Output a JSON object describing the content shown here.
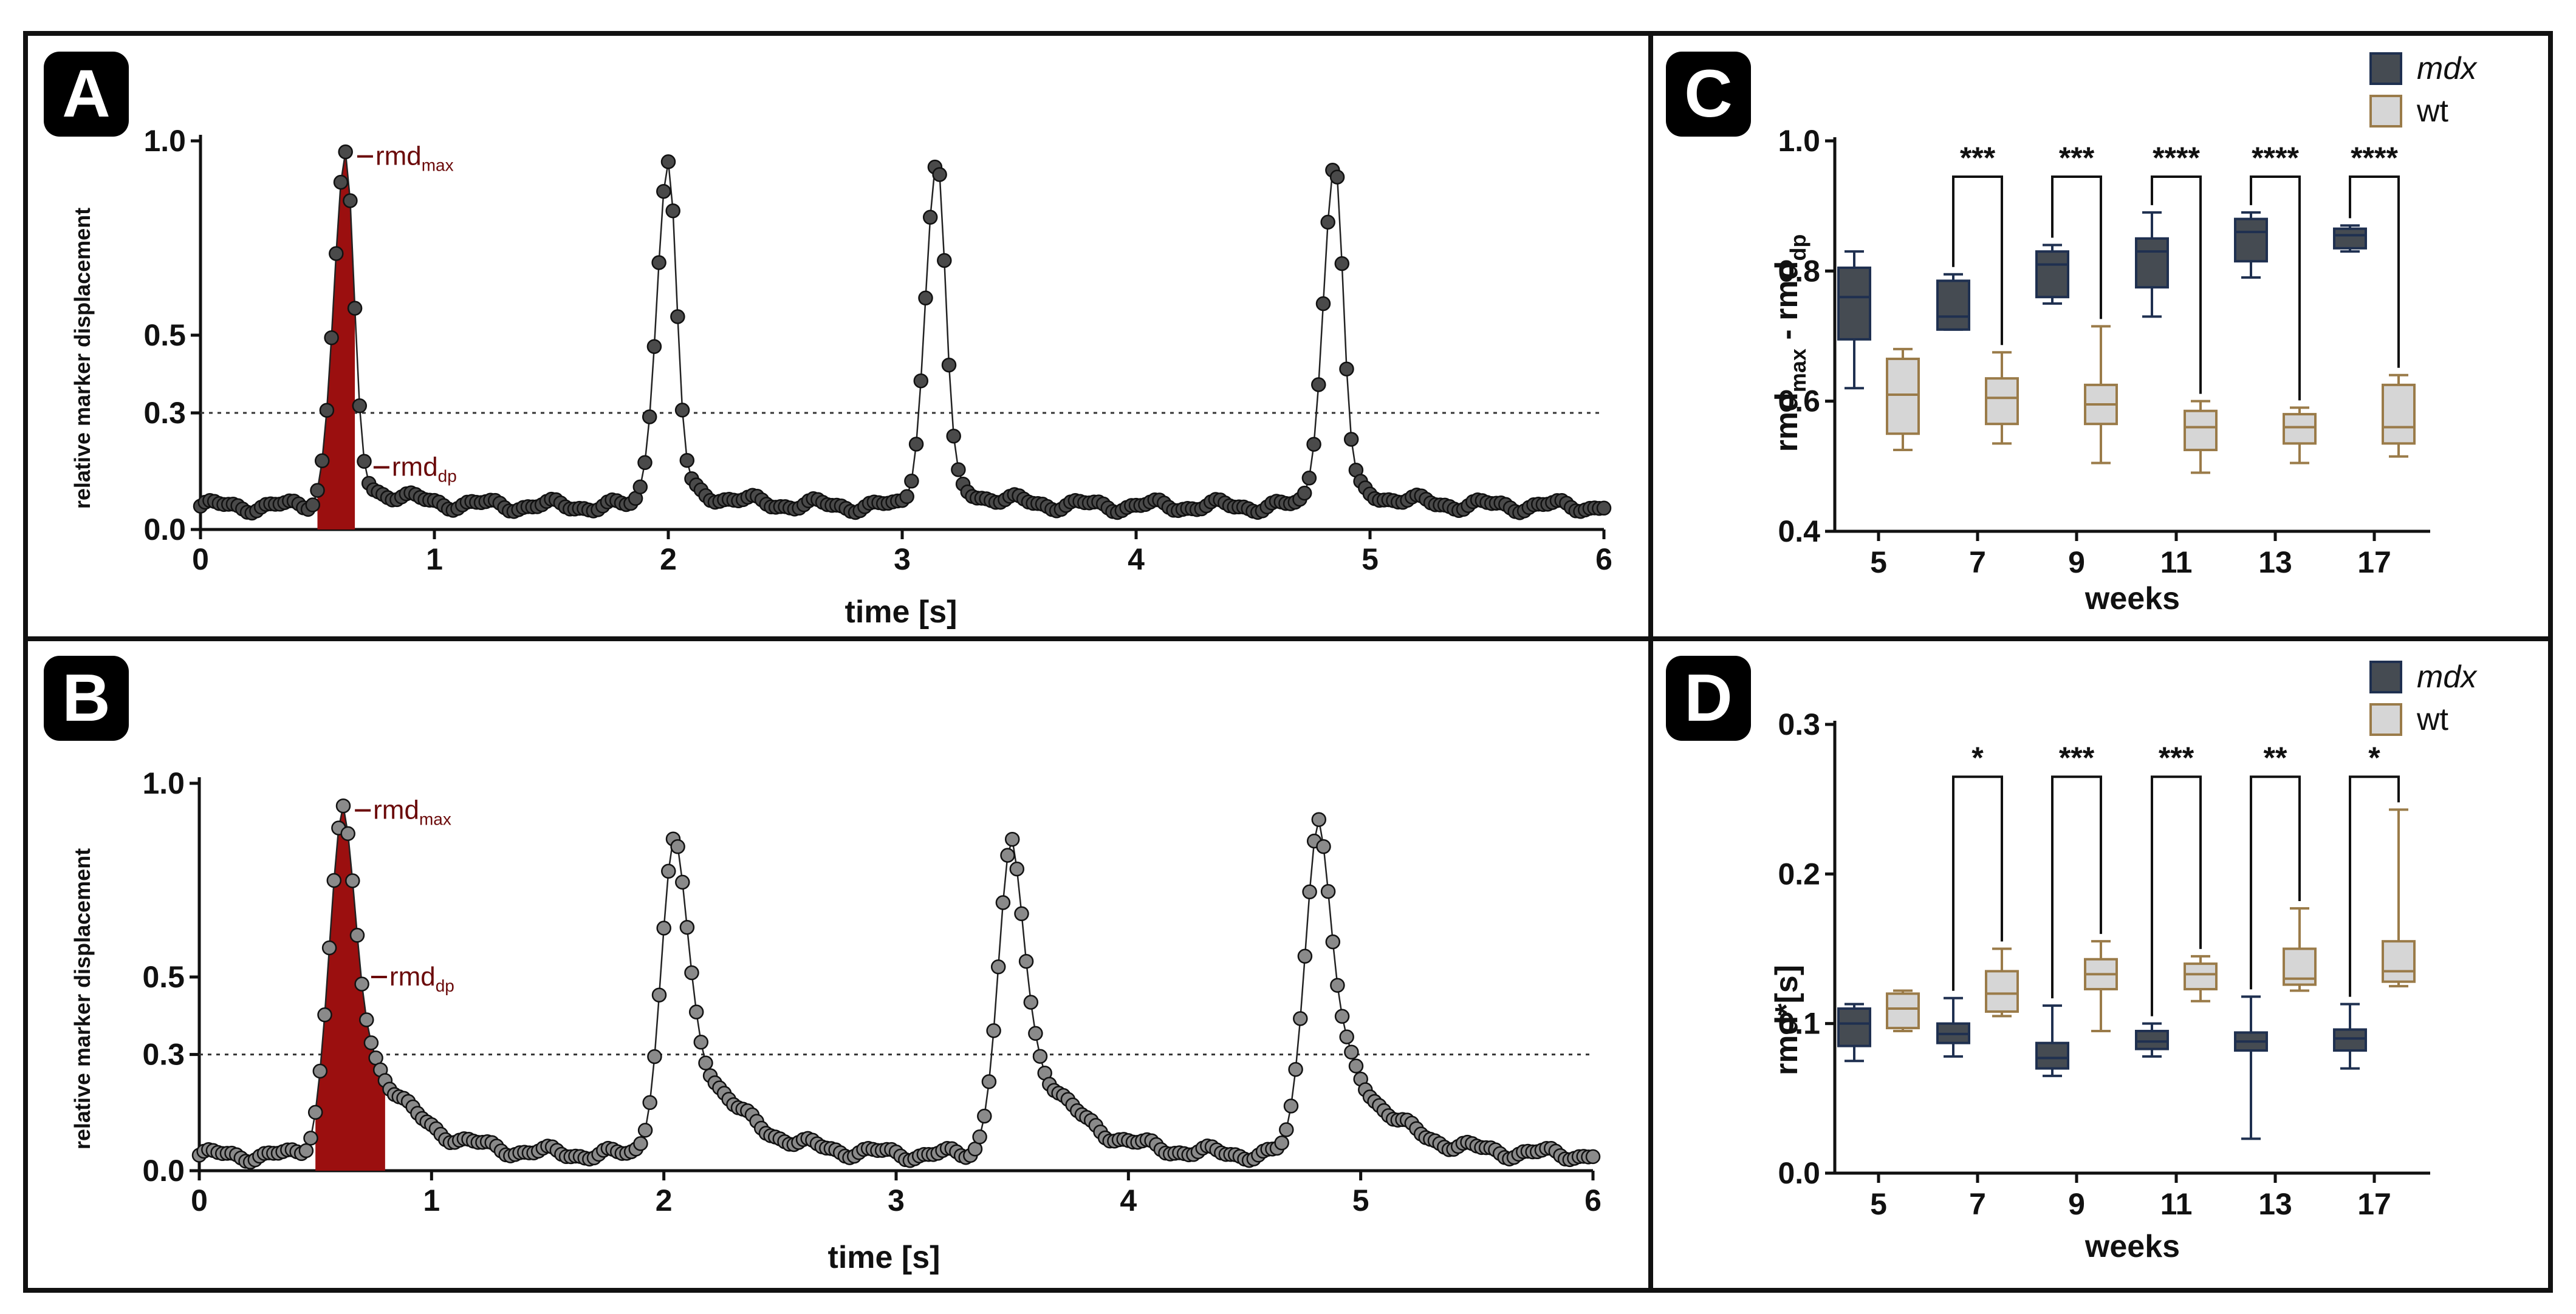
{
  "colors": {
    "mdx_fill": "#454b52",
    "mdx_stroke": "#1f3050",
    "wt_fill": "#d6d6d6",
    "wt_stroke": "#9a7b49",
    "shade": "#9b0f0f",
    "annotation": "#6b0a0a",
    "trace_A_point": "#4a4a4a",
    "trace_B_point": "#8a8a8a",
    "line": "#222222"
  },
  "chart_data": [
    {
      "panel": "A",
      "type": "scatter",
      "xlabel": "time [s]",
      "ylabel": "relative marker displacement",
      "xlim": [
        0,
        6
      ],
      "ylim": [
        0,
        1.0
      ],
      "xticks": [
        "0",
        "1",
        "2",
        "3",
        "4",
        "5",
        "6"
      ],
      "yticks": [
        "0.0",
        "0.3",
        "0.5",
        "1.0"
      ],
      "threshold": 0.3,
      "baseline": 0.06,
      "peaks": [
        {
          "t": 0.62,
          "amp": 0.96,
          "rise": 0.05,
          "fall": 0.035,
          "tail_amp": 0.09,
          "tail_tau": 0.18
        },
        {
          "t": 2.0,
          "amp": 0.94,
          "rise": 0.05,
          "fall": 0.035,
          "tail_amp": 0.08,
          "tail_tau": 0.18
        },
        {
          "t": 3.15,
          "amp": 0.95,
          "rise": 0.05,
          "fall": 0.035,
          "tail_amp": 0.08,
          "tail_tau": 0.18
        },
        {
          "t": 4.85,
          "amp": 0.94,
          "rise": 0.05,
          "fall": 0.035,
          "tail_amp": 0.08,
          "tail_tau": 0.18
        }
      ],
      "shaded_region": [
        0.5,
        0.66
      ],
      "annotations": [
        {
          "main": "rmd",
          "sub": "max",
          "value": 0.96
        },
        {
          "main": "rmd",
          "sub": "dp",
          "value": 0.16
        }
      ]
    },
    {
      "panel": "B",
      "type": "scatter",
      "xlabel": "time [s]",
      "ylabel": "relative marker displacement",
      "xlim": [
        0,
        6
      ],
      "ylim": [
        0,
        1.0
      ],
      "xticks": [
        "0",
        "1",
        "2",
        "3",
        "4",
        "5",
        "6"
      ],
      "yticks": [
        "0.0",
        "0.3",
        "0.5",
        "1.0"
      ],
      "threshold": 0.3,
      "baseline": 0.04,
      "peaks": [
        {
          "t": 0.62,
          "amp": 0.93,
          "rise": 0.06,
          "fall": 0.05,
          "tail_amp": 0.5,
          "tail_tau": 0.2
        },
        {
          "t": 2.05,
          "amp": 0.86,
          "rise": 0.06,
          "fall": 0.05,
          "tail_amp": 0.46,
          "tail_tau": 0.2
        },
        {
          "t": 3.5,
          "amp": 0.84,
          "rise": 0.06,
          "fall": 0.05,
          "tail_amp": 0.44,
          "tail_tau": 0.2
        },
        {
          "t": 4.82,
          "amp": 0.91,
          "rise": 0.06,
          "fall": 0.05,
          "tail_amp": 0.49,
          "tail_tau": 0.2
        }
      ],
      "shaded_region": [
        0.5,
        0.8
      ],
      "annotations": [
        {
          "main": "rmd",
          "sub": "max",
          "value": 0.93
        },
        {
          "main": "rmd",
          "sub": "dp",
          "value": 0.5
        }
      ]
    },
    {
      "panel": "C",
      "type": "box",
      "xlabel": "weeks",
      "ylabel_main": "rmd",
      "ylabel_sub1": "max",
      "ylabel_mid": " - rmd",
      "ylabel_sub2": "dp",
      "ylim": [
        0.4,
        1.0
      ],
      "yticks": [
        "0.4",
        "0.6",
        "0.8",
        "1.0"
      ],
      "ytick_values": [
        0.4,
        0.6,
        0.8,
        1.0
      ],
      "categories": [
        "5",
        "7",
        "9",
        "11",
        "13",
        "17"
      ],
      "legend": [
        "mdx",
        "wt"
      ],
      "series": [
        {
          "name": "mdx",
          "boxes": [
            [
              0.62,
              0.695,
              0.76,
              0.805,
              0.83
            ],
            [
              0.71,
              0.71,
              0.73,
              0.785,
              0.795
            ],
            [
              0.75,
              0.76,
              0.81,
              0.83,
              0.84
            ],
            [
              0.73,
              0.775,
              0.83,
              0.85,
              0.89
            ],
            [
              0.79,
              0.815,
              0.86,
              0.88,
              0.89
            ],
            [
              0.83,
              0.835,
              0.855,
              0.865,
              0.87
            ]
          ]
        },
        {
          "name": "wt",
          "boxes": [
            [
              0.525,
              0.55,
              0.61,
              0.665,
              0.68
            ],
            [
              0.535,
              0.565,
              0.605,
              0.635,
              0.675
            ],
            [
              0.505,
              0.565,
              0.595,
              0.625,
              0.715
            ],
            [
              0.49,
              0.525,
              0.56,
              0.585,
              0.6
            ],
            [
              0.505,
              0.535,
              0.56,
              0.58,
              0.59
            ],
            [
              0.515,
              0.535,
              0.56,
              0.625,
              0.64
            ]
          ]
        }
      ],
      "significance": [
        "",
        "***",
        "***",
        "****",
        "****",
        "****"
      ]
    },
    {
      "panel": "D",
      "type": "box",
      "xlabel": "weeks",
      "ylabel": "rmd*[s]",
      "ylim": [
        0.0,
        0.3
      ],
      "yticks": [
        "0.0",
        "0.1",
        "0.2",
        "0.3"
      ],
      "ytick_values": [
        0.0,
        0.1,
        0.2,
        0.3
      ],
      "categories": [
        "5",
        "7",
        "9",
        "11",
        "13",
        "17"
      ],
      "legend": [
        "mdx",
        "wt"
      ],
      "series": [
        {
          "name": "mdx",
          "boxes": [
            [
              0.075,
              0.085,
              0.1,
              0.11,
              0.113
            ],
            [
              0.078,
              0.087,
              0.093,
              0.1,
              0.117
            ],
            [
              0.065,
              0.07,
              0.077,
              0.087,
              0.112
            ],
            [
              0.078,
              0.083,
              0.088,
              0.095,
              0.1
            ],
            [
              0.023,
              0.082,
              0.088,
              0.094,
              0.118
            ],
            [
              0.07,
              0.082,
              0.09,
              0.096,
              0.113
            ]
          ]
        },
        {
          "name": "wt",
          "boxes": [
            [
              0.095,
              0.097,
              0.11,
              0.12,
              0.122
            ],
            [
              0.105,
              0.108,
              0.12,
              0.135,
              0.15
            ],
            [
              0.095,
              0.123,
              0.133,
              0.143,
              0.155
            ],
            [
              0.115,
              0.123,
              0.133,
              0.14,
              0.145
            ],
            [
              0.122,
              0.126,
              0.13,
              0.15,
              0.177
            ],
            [
              0.125,
              0.128,
              0.135,
              0.155,
              0.243
            ]
          ]
        }
      ],
      "significance": [
        "",
        "*",
        "***",
        "***",
        "**",
        "*"
      ]
    }
  ]
}
